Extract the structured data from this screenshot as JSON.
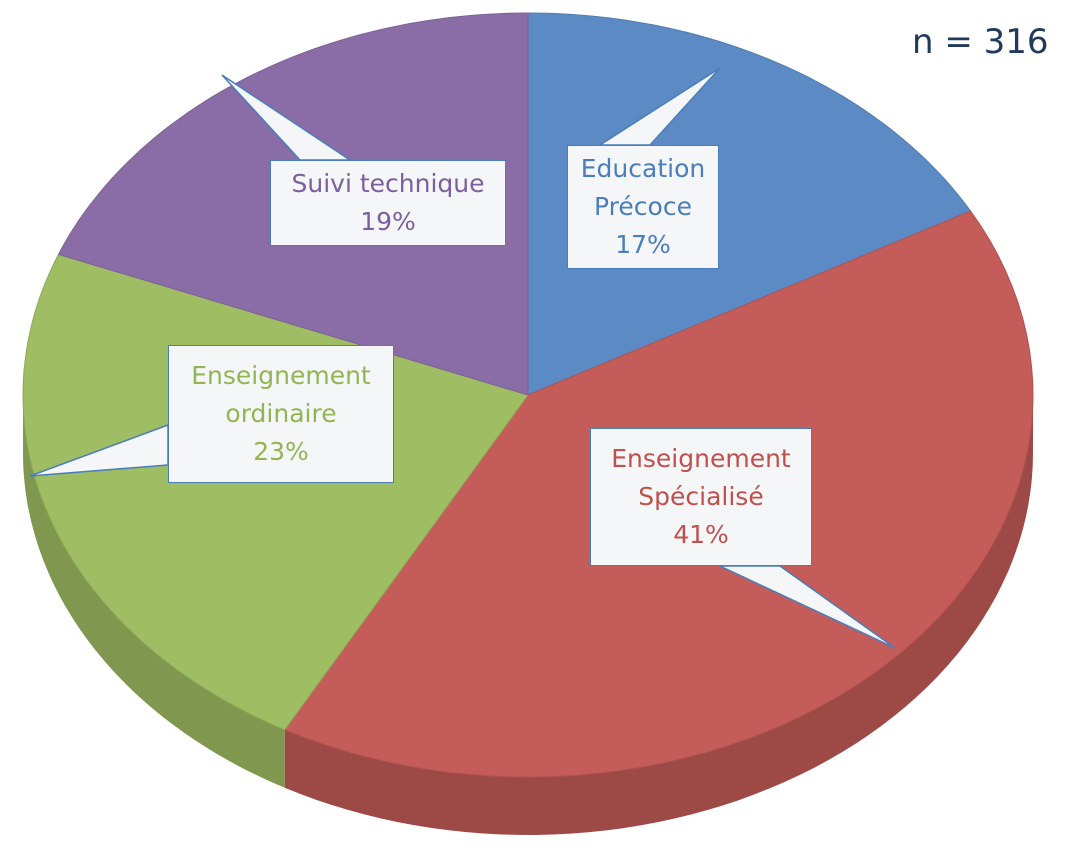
{
  "chart_data": {
    "type": "pie",
    "annotation": "n = 316",
    "categories": [
      "Education Précoce",
      "Enseignement Spécialisé",
      "Enseignement ordinaire",
      "Suivi technique"
    ],
    "values": [
      17,
      41,
      23,
      19
    ],
    "value_labels": [
      "17%",
      "41%",
      "23%",
      "19%"
    ],
    "colors": [
      "#5b8ac4",
      "#c45c59",
      "#9fbd62",
      "#8a6da6"
    ],
    "label_colors": [
      "#4a7ebb",
      "#c0504d",
      "#93b552",
      "#7d5ea0"
    ]
  }
}
